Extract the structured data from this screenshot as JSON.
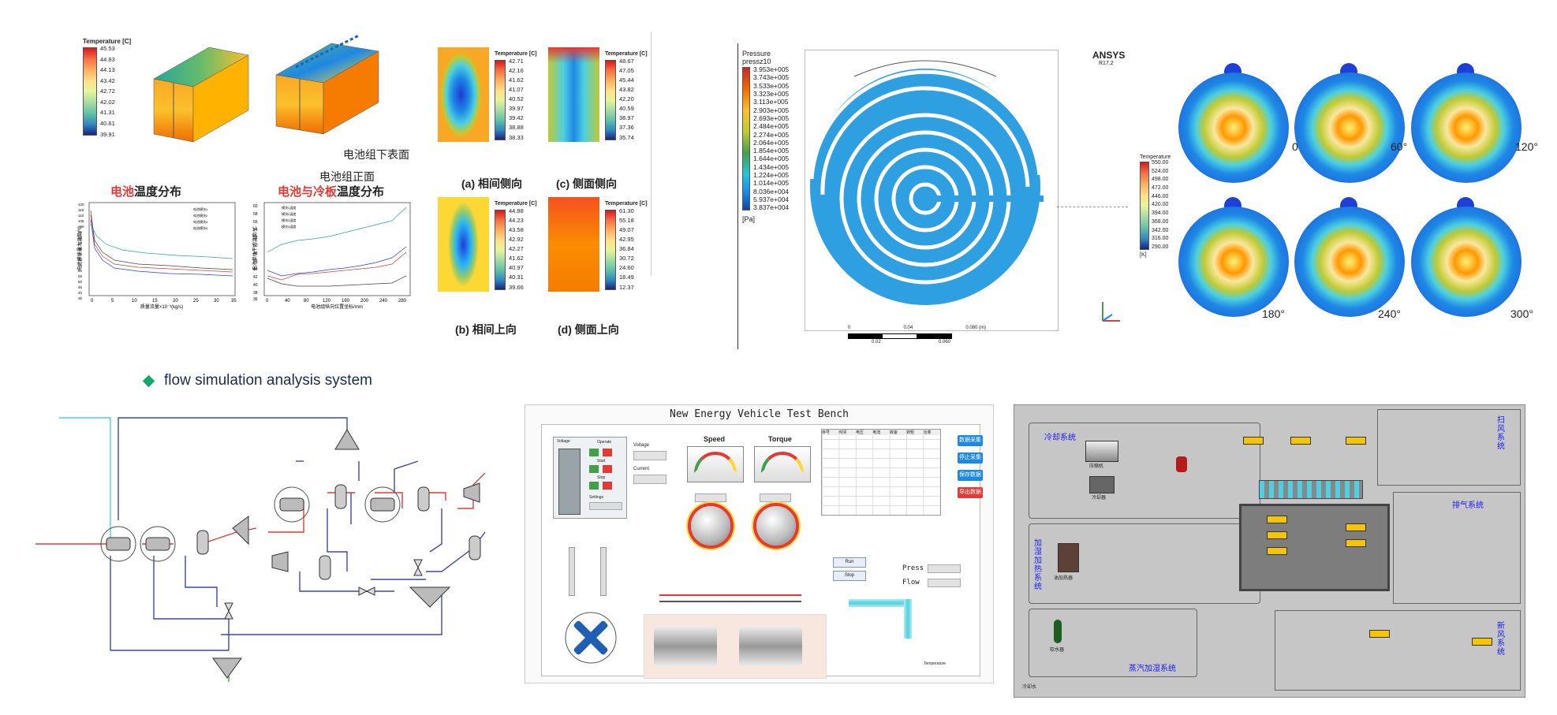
{
  "heading": {
    "bullet_icon": "diamond-icon",
    "text": "flow simulation analysis system",
    "bullet_color": "#13a86b"
  },
  "battery": {
    "legend_title": "Temperature [C]",
    "legend_values": [
      "45.53",
      "44.83",
      "44.13",
      "43.42",
      "42.72",
      "42.02",
      "41.31",
      "40.61",
      "39.91"
    ],
    "label_bottom": "电池组下表面",
    "label_front": "电池组正面",
    "caption_left_red": "电池",
    "caption_left_black": "温度分布",
    "caption_right_red": "电池与冷板",
    "caption_right_black": "温度分布",
    "chart1": {
      "ylabel": "电池模块最大温度/℃",
      "xlabel": "质量流量×10⁻³(kg/s)",
      "yticks": [
        "120",
        "115",
        "110",
        "105",
        "100",
        "95",
        "90",
        "85",
        "80",
        "75",
        "70",
        "65",
        "60",
        "55",
        "50",
        "45",
        "40",
        "35"
      ],
      "xticks": [
        "0",
        "5",
        "10",
        "15",
        "20",
        "25",
        "30",
        "35"
      ],
      "legend": [
        "电池模块1",
        "电池模块2",
        "电池模块3",
        "电池模块4"
      ]
    },
    "chart2": {
      "ylabel": "电池单体平均温度/℃",
      "xlabel": "电池组纵向位置坐标/mm",
      "yticks": [
        "60",
        "58",
        "56",
        "54",
        "52",
        "50",
        "48",
        "46",
        "44",
        "42",
        "40",
        "38",
        "36"
      ],
      "xticks": [
        "0",
        "40",
        "80",
        "120",
        "160",
        "200",
        "240",
        "280"
      ],
      "legend": [
        "模块1温度",
        "模块2温度",
        "模块3温度",
        "模块4温度"
      ]
    }
  },
  "cells": {
    "a": {
      "title": "Temperature [C]",
      "values": [
        "42.71",
        "42.16",
        "41.62",
        "41.07",
        "40.52",
        "39.97",
        "39.42",
        "38.88",
        "38.33"
      ],
      "caption": "(a) 相间侧向"
    },
    "c": {
      "title": "Temperature [C]",
      "values": [
        "48.67",
        "47.05",
        "45.44",
        "43.82",
        "42.20",
        "40.59",
        "38.97",
        "37.36",
        "35.74"
      ],
      "caption": "(c) 侧面侧向"
    },
    "b": {
      "title": "Temperature [C]",
      "values": [
        "44.88",
        "44.23",
        "43.58",
        "42.92",
        "42.27",
        "41.62",
        "40.97",
        "40.31",
        "39.66"
      ],
      "caption": "(b) 相间上向"
    },
    "d": {
      "title": "Temperature [C]",
      "values": [
        "61.30",
        "55.18",
        "49.07",
        "42.95",
        "36.84",
        "30.72",
        "24.60",
        "18.49",
        "12.37"
      ],
      "caption": "(d) 侧面上向"
    }
  },
  "ansys": {
    "legend_title": "Pressure",
    "legend_sub": "pressz10",
    "legend_values": [
      "3.953e+005",
      "3.743e+005",
      "3.533e+005",
      "3.323e+005",
      "3.113e+005",
      "2.903e+005",
      "2.693e+005",
      "2.484e+005",
      "2.274e+005",
      "2.064e+005",
      "1.854e+005",
      "1.644e+005",
      "1.434e+005",
      "1.224e+005",
      "1.014e+005",
      "8.036e+004",
      "5.937e+004",
      "3.837e+004"
    ],
    "unit": "[Pa]",
    "brand": "ANSYS",
    "version": "R17.2",
    "scale": [
      "0",
      "0.04",
      "0.080 (m)",
      "0.02",
      "0.060"
    ]
  },
  "rotation": {
    "legend_title": "Temperature",
    "legend_values": [
      "550.00",
      "524.00",
      "498.00",
      "472.00",
      "446.00",
      "420.00",
      "394.00",
      "368.00",
      "342.00",
      "316.00",
      "290.00"
    ],
    "unit": "[K]",
    "angles": [
      "0°",
      "60°",
      "120°",
      "180°",
      "240°",
      "300°"
    ]
  },
  "bench": {
    "title": "New Energy Vehicle Test Bench",
    "speed": "Speed",
    "torque": "Torque",
    "voltage": "Voltage",
    "current": "Current",
    "operate": "Operate",
    "start": "Start",
    "stop": "Stop",
    "settings": "Settings",
    "press": "Press",
    "flow": "Flow",
    "temperature": "Temperature",
    "run_btn": "Run",
    "stop_btn": "Stop",
    "table_cols": [
      "序号",
      "时间",
      "电压",
      "电流",
      "转速",
      "转矩",
      "功率"
    ],
    "side_buttons": [
      "数据采集",
      "停止采集",
      "保存数据",
      "导出数据"
    ]
  },
  "hvac": {
    "cooling": "冷却系统",
    "heat_humid": "加湿加热系统",
    "steam": "蒸汽加湿系统",
    "fan": "扫风系统",
    "exhaust": "排气系统",
    "fresh_air": "新风系统",
    "compressor": "压缩机",
    "cooler": "冷却器",
    "oil_heater": "油加热器",
    "softener": "软水器",
    "bottom_label": "冷却水"
  }
}
